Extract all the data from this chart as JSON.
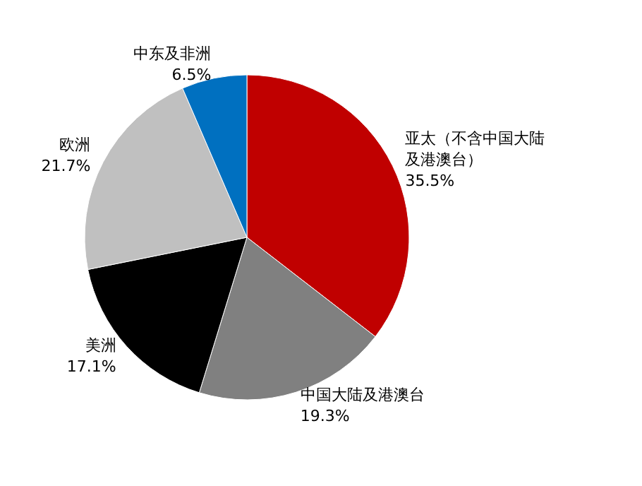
{
  "chart_data": {
    "type": "pie",
    "categories": [
      "亚太（不含中国大陆及港澳台）",
      "中国大陆及港澳台",
      "美洲",
      "欧洲",
      "中东及非洲"
    ],
    "values": [
      35.5,
      19.3,
      17.1,
      21.7,
      6.5
    ],
    "value_labels": [
      "35.5%",
      "19.3%",
      "17.1%",
      "21.7%",
      "6.5%"
    ],
    "colors": [
      "#c00000",
      "#808080",
      "#000000",
      "#c0c0c0",
      "#0070c0"
    ]
  }
}
